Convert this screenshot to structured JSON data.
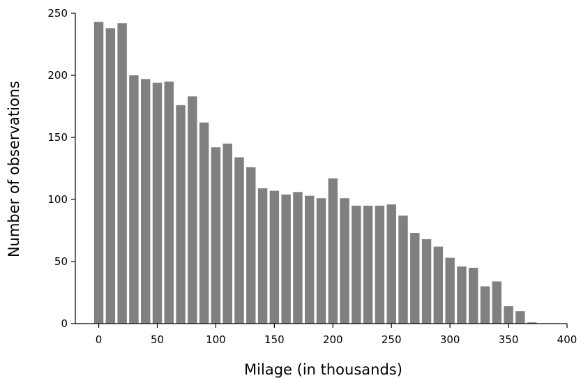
{
  "chart_data": {
    "type": "bar",
    "xlabel": "Milage (in thousands)",
    "ylabel": "Number of observations",
    "xlim": [
      -20,
      400
    ],
    "ylim": [
      0,
      250
    ],
    "xticks": [
      0,
      50,
      100,
      150,
      200,
      250,
      300,
      350,
      400
    ],
    "yticks": [
      0,
      50,
      100,
      150,
      200,
      250
    ],
    "bar_color": "#808080",
    "grid": false,
    "bin_width": 10,
    "x": [
      0,
      10,
      20,
      30,
      40,
      50,
      60,
      70,
      80,
      90,
      100,
      110,
      120,
      130,
      140,
      150,
      160,
      170,
      180,
      190,
      200,
      210,
      220,
      230,
      240,
      250,
      260,
      270,
      280,
      290,
      300,
      310,
      320,
      330,
      340,
      350,
      360,
      370
    ],
    "values": [
      243,
      238,
      242,
      200,
      197,
      194,
      195,
      176,
      183,
      162,
      142,
      145,
      134,
      126,
      109,
      107,
      104,
      106,
      103,
      101,
      117,
      101,
      95,
      95,
      95,
      96,
      87,
      73,
      68,
      62,
      53,
      46,
      45,
      30,
      34,
      14,
      10,
      1
    ]
  }
}
